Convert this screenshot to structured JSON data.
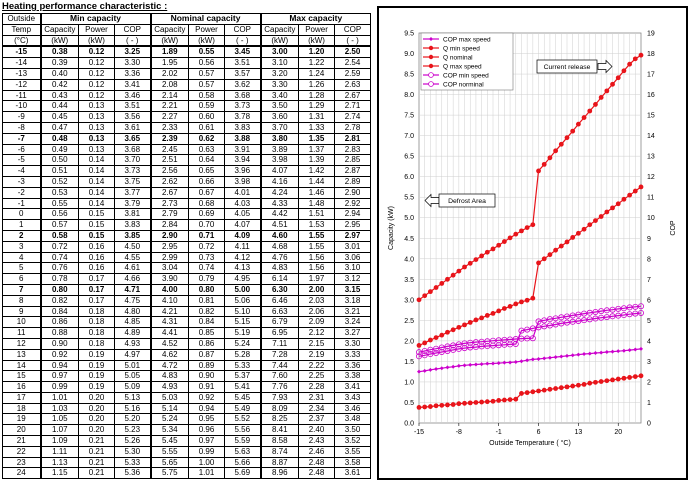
{
  "table": {
    "title": "Heating performance  characteristic  :",
    "header_outside": [
      "Outside",
      "Temp"
    ],
    "groups": [
      "Min capacity",
      "Nominal capacity",
      "Max capacity"
    ],
    "subheaders": [
      "Capacity",
      "Power",
      "COP"
    ],
    "units": [
      "(°C)",
      "(kW)",
      "(kW)",
      "( - )"
    ],
    "rows": [
      [
        "-15",
        "0.38",
        "0.12",
        "3.25",
        "1.89",
        "0.55",
        "3.45",
        "3.00",
        "1.20",
        "2.50"
      ],
      [
        "-14",
        "0.39",
        "0.12",
        "3.30",
        "1.95",
        "0.56",
        "3.51",
        "3.10",
        "1.22",
        "2.54"
      ],
      [
        "-13",
        "0.40",
        "0.12",
        "3.36",
        "2.02",
        "0.57",
        "3.57",
        "3.20",
        "1.24",
        "2.59"
      ],
      [
        "-12",
        "0.42",
        "0.12",
        "3.41",
        "2.08",
        "0.57",
        "3.62",
        "3.30",
        "1.26",
        "2.63"
      ],
      [
        "-11",
        "0.43",
        "0.12",
        "3.46",
        "2.14",
        "0.58",
        "3.68",
        "3.40",
        "1.28",
        "2.67"
      ],
      [
        "-10",
        "0.44",
        "0.13",
        "3.51",
        "2.21",
        "0.59",
        "3.73",
        "3.50",
        "1.29",
        "2.71"
      ],
      [
        "-9",
        "0.45",
        "0.13",
        "3.56",
        "2.27",
        "0.60",
        "3.78",
        "3.60",
        "1.31",
        "2.74"
      ],
      [
        "-8",
        "0.47",
        "0.13",
        "3.61",
        "2.33",
        "0.61",
        "3.83",
        "3.70",
        "1.33",
        "2.78"
      ],
      [
        "-7",
        "0.48",
        "0.13",
        "3.65",
        "2.39",
        "0.62",
        "3.88",
        "3.80",
        "1.35",
        "2.81"
      ],
      [
        "-6",
        "0.49",
        "0.13",
        "3.68",
        "2.45",
        "0.63",
        "3.91",
        "3.89",
        "1.37",
        "2.83"
      ],
      [
        "-5",
        "0.50",
        "0.14",
        "3.70",
        "2.51",
        "0.64",
        "3.94",
        "3.98",
        "1.39",
        "2.85"
      ],
      [
        "-4",
        "0.51",
        "0.14",
        "3.73",
        "2.56",
        "0.65",
        "3.96",
        "4.07",
        "1.42",
        "2.87"
      ],
      [
        "-3",
        "0.52",
        "0.14",
        "3.75",
        "2.62",
        "0.66",
        "3.98",
        "4.16",
        "1.44",
        "2.89"
      ],
      [
        "-2",
        "0.53",
        "0.14",
        "3.77",
        "2.67",
        "0.67",
        "4.01",
        "4.24",
        "1.46",
        "2.90"
      ],
      [
        "-1",
        "0.55",
        "0.14",
        "3.79",
        "2.73",
        "0.68",
        "4.03",
        "4.33",
        "1.48",
        "2.92"
      ],
      [
        "0",
        "0.56",
        "0.15",
        "3.81",
        "2.79",
        "0.69",
        "4.05",
        "4.42",
        "1.51",
        "2.94"
      ],
      [
        "1",
        "0.57",
        "0.15",
        "3.83",
        "2.84",
        "0.70",
        "4.07",
        "4.51",
        "1.53",
        "2.95"
      ],
      [
        "2",
        "0.58",
        "0.15",
        "3.85",
        "2.90",
        "0.71",
        "4.09",
        "4.60",
        "1.55",
        "2.97"
      ],
      [
        "3",
        "0.72",
        "0.16",
        "4.50",
        "2.95",
        "0.72",
        "4.11",
        "4.68",
        "1.55",
        "3.01"
      ],
      [
        "4",
        "0.74",
        "0.16",
        "4.55",
        "2.99",
        "0.73",
        "4.12",
        "4.76",
        "1.56",
        "3.06"
      ],
      [
        "5",
        "0.76",
        "0.16",
        "4.61",
        "3.04",
        "0.74",
        "4.13",
        "4.83",
        "1.56",
        "3.10"
      ],
      [
        "6",
        "0.78",
        "0.17",
        "4.66",
        "3.90",
        "0.79",
        "4.95",
        "6.14",
        "1.97",
        "3.12"
      ],
      [
        "7",
        "0.80",
        "0.17",
        "4.71",
        "4.00",
        "0.80",
        "5.00",
        "6.30",
        "2.00",
        "3.15"
      ],
      [
        "8",
        "0.82",
        "0.17",
        "4.75",
        "4.10",
        "0.81",
        "5.06",
        "6.46",
        "2.03",
        "3.18"
      ],
      [
        "9",
        "0.84",
        "0.18",
        "4.80",
        "4.21",
        "0.82",
        "5.10",
        "6.63",
        "2.06",
        "3.21"
      ],
      [
        "10",
        "0.86",
        "0.18",
        "4.85",
        "4.31",
        "0.84",
        "5.15",
        "6.79",
        "2.09",
        "3.24"
      ],
      [
        "11",
        "0.88",
        "0.18",
        "4.89",
        "4.41",
        "0.85",
        "5.19",
        "6.95",
        "2.12",
        "3.27"
      ],
      [
        "12",
        "0.90",
        "0.18",
        "4.93",
        "4.52",
        "0.86",
        "5.24",
        "7.11",
        "2.15",
        "3.30"
      ],
      [
        "13",
        "0.92",
        "0.19",
        "4.97",
        "4.62",
        "0.87",
        "5.28",
        "7.28",
        "2.19",
        "3.33"
      ],
      [
        "14",
        "0.94",
        "0.19",
        "5.01",
        "4.72",
        "0.89",
        "5.33",
        "7.44",
        "2.22",
        "3.36"
      ],
      [
        "15",
        "0.97",
        "0.19",
        "5.05",
        "4.83",
        "0.90",
        "5.37",
        "7.60",
        "2.25",
        "3.38"
      ],
      [
        "16",
        "0.99",
        "0.19",
        "5.09",
        "4.93",
        "0.91",
        "5.41",
        "7.76",
        "2.28",
        "3.41"
      ],
      [
        "17",
        "1.01",
        "0.20",
        "5.13",
        "5.03",
        "0.92",
        "5.45",
        "7.93",
        "2.31",
        "3.43"
      ],
      [
        "18",
        "1.03",
        "0.20",
        "5.16",
        "5.14",
        "0.94",
        "5.49",
        "8.09",
        "2.34",
        "3.46"
      ],
      [
        "19",
        "1.05",
        "0.20",
        "5.20",
        "5.24",
        "0.95",
        "5.52",
        "8.25",
        "2.37",
        "3.48"
      ],
      [
        "20",
        "1.07",
        "0.20",
        "5.23",
        "5.34",
        "0.96",
        "5.56",
        "8.41",
        "2.40",
        "3.50"
      ],
      [
        "21",
        "1.09",
        "0.21",
        "5.26",
        "5.45",
        "0.97",
        "5.59",
        "8.58",
        "2.43",
        "3.52"
      ],
      [
        "22",
        "1.11",
        "0.21",
        "5.30",
        "5.55",
        "0.99",
        "5.63",
        "8.74",
        "2.46",
        "3.55"
      ],
      [
        "23",
        "1.13",
        "0.21",
        "5.33",
        "5.65",
        "1.00",
        "5.66",
        "8.87",
        "2.48",
        "3.58"
      ],
      [
        "24",
        "1.15",
        "0.21",
        "5.36",
        "5.75",
        "1.01",
        "5.69",
        "8.96",
        "2.48",
        "3.61"
      ]
    ],
    "bold_temps": [
      "-15",
      "-7",
      "2",
      "7"
    ]
  },
  "chart_data": {
    "type": "line",
    "title": "",
    "xlabel": "Outside Temperature ( °C)",
    "ylabel": "Capacity (kW)",
    "y2label": "COP",
    "xlim": [
      -15,
      24
    ],
    "ylim": [
      0.0,
      9.5
    ],
    "y2lim": [
      0,
      19
    ],
    "xticks": [
      "-15",
      "-8",
      "-1",
      "6",
      "13",
      "20"
    ],
    "xtick_values": [
      -15,
      -8,
      -1,
      6,
      13,
      20
    ],
    "yticks": [
      "0.0",
      "0.5",
      "1.0",
      "1.5",
      "2.0",
      "2.5",
      "3.0",
      "3.5",
      "4.0",
      "4.5",
      "5.0",
      "5.5",
      "6.0",
      "6.5",
      "7.0",
      "7.5",
      "8.0",
      "8.5",
      "9.0",
      "9.5"
    ],
    "y2ticks": [
      "0",
      "1",
      "2",
      "3",
      "4",
      "5",
      "6",
      "7",
      "8",
      "9",
      "10",
      "11",
      "12",
      "13",
      "14",
      "15",
      "16",
      "17",
      "18",
      "19"
    ],
    "grid": true,
    "legend_position": "top-left",
    "legend": [
      "COP max speed",
      "Q min speed",
      "Q nominal",
      "Q max speed",
      "COP min speed",
      "COP norminal"
    ],
    "annotations": {
      "current_release": "Current release",
      "defrost_area": "Defrost Area"
    },
    "colors": {
      "q": "#e8141a",
      "cop": "#cc00cc"
    }
  }
}
